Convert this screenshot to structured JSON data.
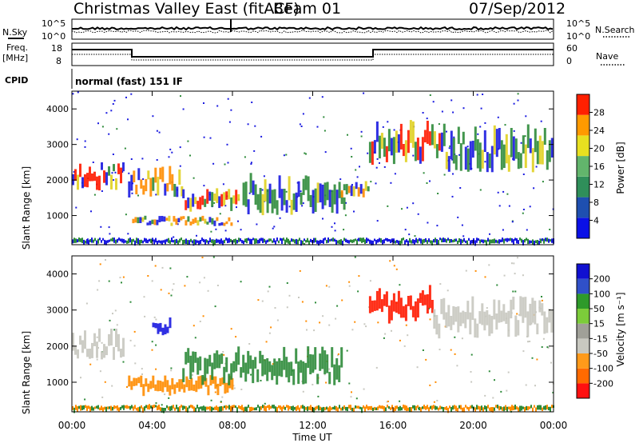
{
  "header": {
    "title": "Christmas Valley East (fitACF)",
    "beam": "Beam 01",
    "date": "07/Sep/2012"
  },
  "left_labels": {
    "nsky": "N.Sky",
    "freq_line1": "Freq.",
    "freq_line2": "[MHz]",
    "cpid": "CPID"
  },
  "right_labels": {
    "nsearch": "N.Search",
    "nave": "Nave"
  },
  "noise_axis": {
    "left_ticks": [
      "10^5",
      "10^0"
    ],
    "right_ticks": [
      "10^5",
      "10^0"
    ]
  },
  "freq_axis": {
    "left_ticks": [
      "18",
      "8"
    ],
    "right_ticks": [
      "60",
      "0"
    ]
  },
  "cpid_text": "normal (fast) 151 IF",
  "colors": {
    "blue": "#1a1ae0",
    "green": "#2e8b3a",
    "yellow": "#e0d020",
    "orange": "#ff8c00",
    "red": "#ff1a00",
    "grey": "#c8c8c0"
  },
  "chart_data": [
    {
      "type": "heatmap",
      "name": "power",
      "ylabel": "Slant Range [km]",
      "ylim": [
        180,
        4500
      ],
      "y_ticks": [
        1000,
        2000,
        3000,
        4000
      ],
      "xlim": [
        0,
        24
      ],
      "x_ticks": [
        "00:00",
        "04:00",
        "08:00",
        "12:00",
        "16:00",
        "20:00",
        "00:00"
      ],
      "colorbar": {
        "label": "Power [dB]",
        "ticks": [
          "28",
          "24",
          "20",
          "16",
          "12",
          "8",
          "4"
        ],
        "range": [
          0,
          30
        ],
        "colors": [
          "#0a10e6",
          "#1e4fb0",
          "#2f8f5a",
          "#62b56c",
          "#e8e020",
          "#ff9a00",
          "#ff2000"
        ]
      },
      "regions": [
        {
          "t0": 0.0,
          "t1": 2.6,
          "r0": 1700,
          "r1": 2500,
          "level": "red"
        },
        {
          "t0": 2.8,
          "t1": 5.5,
          "r0": 1500,
          "r1": 2400,
          "level": "orange"
        },
        {
          "t0": 3.0,
          "t1": 8.0,
          "r0": 700,
          "r1": 1000,
          "level": "orange"
        },
        {
          "t0": 5.5,
          "t1": 8.4,
          "r0": 1100,
          "r1": 1800,
          "level": "red"
        },
        {
          "t0": 8.5,
          "t1": 13.6,
          "r0": 1000,
          "r1": 2200,
          "level": "green"
        },
        {
          "t0": 13.4,
          "t1": 14.8,
          "r0": 1500,
          "r1": 2000,
          "level": "orange"
        },
        {
          "t0": 14.8,
          "t1": 18.5,
          "r0": 2400,
          "r1": 3700,
          "level": "red"
        },
        {
          "t0": 18.5,
          "t1": 24.0,
          "r0": 2200,
          "r1": 3600,
          "level": "green"
        }
      ]
    },
    {
      "type": "heatmap",
      "name": "velocity",
      "ylabel": "Slant Range [km]",
      "xlabel": "Time UT",
      "ylim": [
        180,
        4500
      ],
      "y_ticks": [
        1000,
        2000,
        3000,
        4000
      ],
      "xlim": [
        0,
        24
      ],
      "x_ticks": [
        "00:00",
        "04:00",
        "08:00",
        "12:00",
        "16:00",
        "20:00",
        "00:00"
      ],
      "colorbar": {
        "label": "Velocity [m s⁻¹]",
        "ticks": [
          "200",
          "100",
          "50",
          "15",
          "-15",
          "-50",
          "-100",
          "-200"
        ],
        "range": [
          -250,
          250
        ],
        "colors": [
          "#ff1010",
          "#ff6a00",
          "#ff9a1a",
          "#c8c8c0",
          "#a0a098",
          "#7ccc3a",
          "#2e9a2a",
          "#3050c8",
          "#1010d0"
        ]
      },
      "regions": [
        {
          "t0": 0.0,
          "t1": 2.6,
          "r0": 1600,
          "r1": 2500,
          "level": "grey"
        },
        {
          "t0": 2.8,
          "t1": 8.0,
          "r0": 600,
          "r1": 1200,
          "level": "orange"
        },
        {
          "t0": 4.0,
          "t1": 5.0,
          "r0": 2300,
          "r1": 2800,
          "level": "blue"
        },
        {
          "t0": 5.5,
          "t1": 13.5,
          "r0": 900,
          "r1": 2000,
          "level": "green"
        },
        {
          "t0": 14.8,
          "t1": 18.0,
          "r0": 2600,
          "r1": 3700,
          "level": "red"
        },
        {
          "t0": 18.0,
          "t1": 24.0,
          "r0": 2200,
          "r1": 3400,
          "level": "grey"
        }
      ]
    }
  ]
}
